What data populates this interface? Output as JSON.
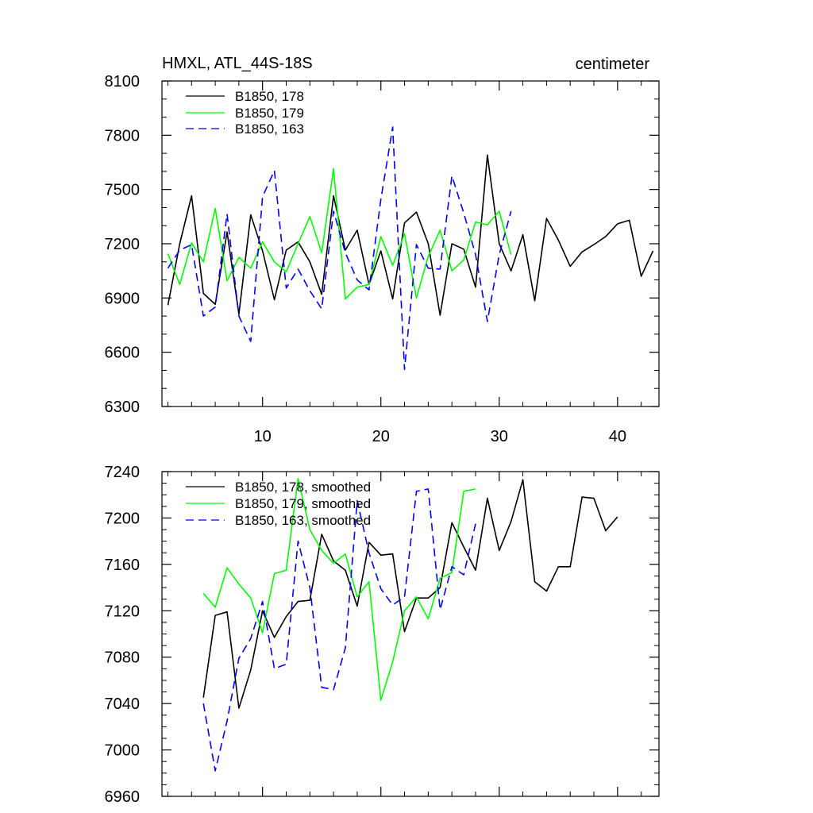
{
  "chart_data": [
    {
      "type": "line",
      "title": "HMXL, ATL_44S-18S",
      "units": "centimeter",
      "xlim": [
        1.5,
        43.5
      ],
      "ylim": [
        6300,
        8100
      ],
      "x_ticks": [
        10,
        20,
        30,
        40
      ],
      "y_ticks": [
        6300,
        6600,
        6900,
        7200,
        7500,
        7800,
        8100
      ],
      "x_minor_step": 2,
      "y_minor_step": 100,
      "show_x_tick_labels": true,
      "legend": "top-left",
      "series": [
        {
          "name": "B1850, 178",
          "color": "#000000",
          "dash": "",
          "x": [
            2,
            3,
            4,
            5,
            6,
            7,
            8,
            9,
            10,
            11,
            12,
            13,
            14,
            15,
            16,
            17,
            18,
            19,
            20,
            21,
            22,
            23,
            24,
            25,
            26,
            27,
            28,
            29,
            30,
            31,
            32,
            33,
            34,
            35,
            36,
            37,
            38,
            39,
            40,
            41,
            42,
            43
          ],
          "values": [
            6860,
            7200,
            7465,
            6925,
            6865,
            7265,
            6810,
            7360,
            7160,
            6890,
            7165,
            7210,
            7100,
            6920,
            7465,
            7165,
            7275,
            6975,
            7160,
            6895,
            7315,
            7375,
            7200,
            6805,
            7200,
            7170,
            6960,
            7690,
            7200,
            7050,
            7250,
            6885,
            7340,
            7220,
            7075,
            7155,
            7195,
            7240,
            7310,
            7330,
            7020,
            7160
          ]
        },
        {
          "name": "B1850, 179",
          "color": "#00ff00",
          "dash": "",
          "x": [
            2,
            3,
            4,
            5,
            6,
            7,
            8,
            9,
            10,
            11,
            12,
            13,
            14,
            15,
            16,
            17,
            18,
            19,
            20,
            21,
            22,
            23,
            24,
            25,
            26,
            27,
            28,
            29,
            30,
            31
          ],
          "values": [
            7145,
            6975,
            7205,
            7100,
            7395,
            6995,
            7125,
            7065,
            7210,
            7100,
            7045,
            7200,
            7350,
            7150,
            7615,
            6895,
            6960,
            6975,
            7240,
            7080,
            7255,
            6900,
            7130,
            7275,
            7050,
            7110,
            7320,
            7305,
            7380,
            7140
          ]
        },
        {
          "name": "B1850, 163",
          "color": "#0000ff",
          "dash": "10,6",
          "x": [
            2,
            3,
            4,
            5,
            6,
            7,
            8,
            9,
            10,
            11,
            12,
            13,
            14,
            15,
            16,
            17,
            18,
            19,
            20,
            21,
            22,
            23,
            24,
            25,
            26,
            27,
            28,
            29,
            30,
            31
          ],
          "values": [
            7065,
            7165,
            7195,
            6800,
            6850,
            7365,
            6800,
            6660,
            7460,
            7605,
            6955,
            7060,
            6940,
            6840,
            7380,
            7150,
            7000,
            6945,
            7445,
            7845,
            6505,
            7195,
            7065,
            7060,
            7575,
            7370,
            7140,
            6770,
            7140,
            7380
          ]
        }
      ]
    },
    {
      "type": "line",
      "title": "",
      "xlim": [
        1.5,
        43.5
      ],
      "ylim": [
        6960,
        7240
      ],
      "x_ticks": [
        10,
        20,
        30,
        40
      ],
      "y_ticks": [
        6960,
        7000,
        7040,
        7080,
        7120,
        7160,
        7200,
        7240
      ],
      "x_minor_step": 2,
      "y_minor_step": 10,
      "show_x_tick_labels": false,
      "legend": "top-left",
      "series": [
        {
          "name": "B1850, 178, smoothed",
          "color": "#000000",
          "dash": "",
          "x": [
            5,
            6,
            7,
            8,
            9,
            10,
            11,
            12,
            13,
            14,
            15,
            16,
            17,
            18,
            19,
            20,
            21,
            22,
            23,
            24,
            25,
            26,
            27,
            28,
            29,
            30,
            31,
            32,
            33,
            34,
            35,
            36,
            37,
            38,
            39,
            40
          ],
          "values": [
            7045,
            7116,
            7119,
            7036,
            7069,
            7120,
            7097,
            7115,
            7128,
            7129,
            7186,
            7163,
            7155,
            7124,
            7179,
            7168,
            7169,
            7102,
            7131,
            7131,
            7140,
            7196,
            7175,
            7155,
            7217,
            7172,
            7197,
            7233,
            7145,
            7137,
            7158,
            7158,
            7218,
            7217,
            7189,
            7201
          ]
        },
        {
          "name": "B1850, 179, smoothed",
          "color": "#00ff00",
          "dash": "",
          "x": [
            5,
            6,
            7,
            8,
            9,
            10,
            11,
            12,
            13,
            14,
            15,
            16,
            17,
            18,
            19,
            20,
            21,
            22,
            23,
            24,
            25,
            26,
            27,
            28
          ],
          "values": [
            7135,
            7123,
            7157,
            7143,
            7131,
            7101,
            7152,
            7155,
            7234,
            7190,
            7172,
            7161,
            7169,
            7132,
            7145,
            7043,
            7076,
            7120,
            7132,
            7113,
            7148,
            7153,
            7223,
            7225
          ]
        },
        {
          "name": "B1850, 163, smoothed",
          "color": "#0000ff",
          "dash": "10,6",
          "x": [
            5,
            6,
            7,
            8,
            9,
            10,
            11,
            12,
            13,
            14,
            15,
            16,
            17,
            18,
            19,
            20,
            21,
            22,
            23,
            24,
            25,
            26,
            27,
            28
          ],
          "values": [
            7040,
            6982,
            7025,
            7079,
            7096,
            7128,
            7070,
            7074,
            7180,
            7140,
            7054,
            7052,
            7088,
            7215,
            7170,
            7139,
            7125,
            7132,
            7223,
            7225,
            7121,
            7158,
            7151,
            7195
          ]
        }
      ]
    }
  ]
}
